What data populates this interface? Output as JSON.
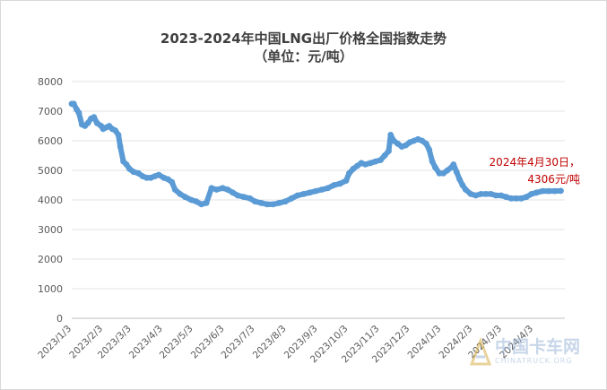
{
  "chart_data": {
    "type": "line",
    "title": "2023-2024年中国LNG出厂价格全国指数走势",
    "subtitle": "（单位：元/吨）",
    "xlabel": "",
    "ylabel": "",
    "ylim": [
      0,
      8000
    ],
    "yticks": [
      "0",
      "1000",
      "2000",
      "3000",
      "4000",
      "5000",
      "6000",
      "7000",
      "8000"
    ],
    "xticks": [
      "2023/1/3",
      "2023/2/3",
      "2023/3/3",
      "2023/4/3",
      "2023/5/3",
      "2023/6/3",
      "2023/7/3",
      "2023/8/3",
      "2023/9/3",
      "2023/10/3",
      "2023/11/3",
      "2023/12/3",
      "2024/1/3",
      "2024/2/3",
      "2024/3/3",
      "2024/4/3"
    ],
    "grid": "horizontal",
    "line_color": "#5b9bd5",
    "series": [
      {
        "points": [
          [
            "2023-01-03",
            7250
          ],
          [
            "2023-01-05",
            7250
          ],
          [
            "2023-01-08",
            7050
          ],
          [
            "2023-01-10",
            6950
          ],
          [
            "2023-01-13",
            6550
          ],
          [
            "2023-01-16",
            6500
          ],
          [
            "2023-01-19",
            6600
          ],
          [
            "2023-01-22",
            6750
          ],
          [
            "2023-01-25",
            6800
          ],
          [
            "2023-01-28",
            6600
          ],
          [
            "2023-02-01",
            6500
          ],
          [
            "2023-02-03",
            6400
          ],
          [
            "2023-02-06",
            6450
          ],
          [
            "2023-02-09",
            6500
          ],
          [
            "2023-02-12",
            6400
          ],
          [
            "2023-02-15",
            6350
          ],
          [
            "2023-02-18",
            6200
          ],
          [
            "2023-02-20",
            5800
          ],
          [
            "2023-02-23",
            5300
          ],
          [
            "2023-02-26",
            5200
          ],
          [
            "2023-03-01",
            5050
          ],
          [
            "2023-03-05",
            4950
          ],
          [
            "2023-03-10",
            4900
          ],
          [
            "2023-03-14",
            4800
          ],
          [
            "2023-03-18",
            4750
          ],
          [
            "2023-03-22",
            4750
          ],
          [
            "2023-03-26",
            4800
          ],
          [
            "2023-03-30",
            4850
          ],
          [
            "2023-04-04",
            4750
          ],
          [
            "2023-04-08",
            4700
          ],
          [
            "2023-04-12",
            4600
          ],
          [
            "2023-04-15",
            4350
          ],
          [
            "2023-04-20",
            4200
          ],
          [
            "2023-04-25",
            4100
          ],
          [
            "2023-05-01",
            4000
          ],
          [
            "2023-05-06",
            3950
          ],
          [
            "2023-05-11",
            3850
          ],
          [
            "2023-05-16",
            3900
          ],
          [
            "2023-05-21",
            4400
          ],
          [
            "2023-05-26",
            4350
          ],
          [
            "2023-06-01",
            4400
          ],
          [
            "2023-06-06",
            4350
          ],
          [
            "2023-06-11",
            4250
          ],
          [
            "2023-06-16",
            4150
          ],
          [
            "2023-06-22",
            4100
          ],
          [
            "2023-06-28",
            4050
          ],
          [
            "2023-07-03",
            3950
          ],
          [
            "2023-07-09",
            3900
          ],
          [
            "2023-07-15",
            3850
          ],
          [
            "2023-07-21",
            3850
          ],
          [
            "2023-07-27",
            3900
          ],
          [
            "2023-08-02",
            3950
          ],
          [
            "2023-08-08",
            4050
          ],
          [
            "2023-08-14",
            4150
          ],
          [
            "2023-08-20",
            4200
          ],
          [
            "2023-08-26",
            4250
          ],
          [
            "2023-09-01",
            4300
          ],
          [
            "2023-09-07",
            4350
          ],
          [
            "2023-09-13",
            4400
          ],
          [
            "2023-09-19",
            4500
          ],
          [
            "2023-09-25",
            4550
          ],
          [
            "2023-10-01",
            4650
          ],
          [
            "2023-10-04",
            4900
          ],
          [
            "2023-10-08",
            5050
          ],
          [
            "2023-10-12",
            5150
          ],
          [
            "2023-10-16",
            5250
          ],
          [
            "2023-10-20",
            5200
          ],
          [
            "2023-10-25",
            5250
          ],
          [
            "2023-10-30",
            5300
          ],
          [
            "2023-11-04",
            5350
          ],
          [
            "2023-11-08",
            5500
          ],
          [
            "2023-11-12",
            5650
          ],
          [
            "2023-11-14",
            6200
          ],
          [
            "2023-11-17",
            6000
          ],
          [
            "2023-11-21",
            5900
          ],
          [
            "2023-11-25",
            5800
          ],
          [
            "2023-11-29",
            5850
          ],
          [
            "2023-12-03",
            5950
          ],
          [
            "2023-12-07",
            6000
          ],
          [
            "2023-12-11",
            6050
          ],
          [
            "2023-12-15",
            6000
          ],
          [
            "2023-12-19",
            5900
          ],
          [
            "2023-12-22",
            5700
          ],
          [
            "2023-12-25",
            5300
          ],
          [
            "2023-12-28",
            5100
          ],
          [
            "2024-01-01",
            4900
          ],
          [
            "2024-01-05",
            4900
          ],
          [
            "2024-01-09",
            5000
          ],
          [
            "2024-01-13",
            5100
          ],
          [
            "2024-01-15",
            5200
          ],
          [
            "2024-01-18",
            4950
          ],
          [
            "2024-01-21",
            4700
          ],
          [
            "2024-01-24",
            4500
          ],
          [
            "2024-01-27",
            4350
          ],
          [
            "2024-02-01",
            4200
          ],
          [
            "2024-02-06",
            4150
          ],
          [
            "2024-02-11",
            4200
          ],
          [
            "2024-02-16",
            4200
          ],
          [
            "2024-02-21",
            4200
          ],
          [
            "2024-02-26",
            4150
          ],
          [
            "2024-03-02",
            4150
          ],
          [
            "2024-03-07",
            4100
          ],
          [
            "2024-03-12",
            4050
          ],
          [
            "2024-03-17",
            4050
          ],
          [
            "2024-03-22",
            4050
          ],
          [
            "2024-03-27",
            4100
          ],
          [
            "2024-04-01",
            4200
          ],
          [
            "2024-04-06",
            4250
          ],
          [
            "2024-04-12",
            4300
          ],
          [
            "2024-04-18",
            4300
          ],
          [
            "2024-04-24",
            4300
          ],
          [
            "2024-04-30",
            4306
          ]
        ]
      }
    ],
    "annotation": {
      "line1": "2024年4月30日，",
      "line2": "4306元/吨",
      "color": "#c00000"
    }
  },
  "watermark": {
    "main": "中国卡车网",
    "sub": "CHINATRUCK.ORG"
  }
}
